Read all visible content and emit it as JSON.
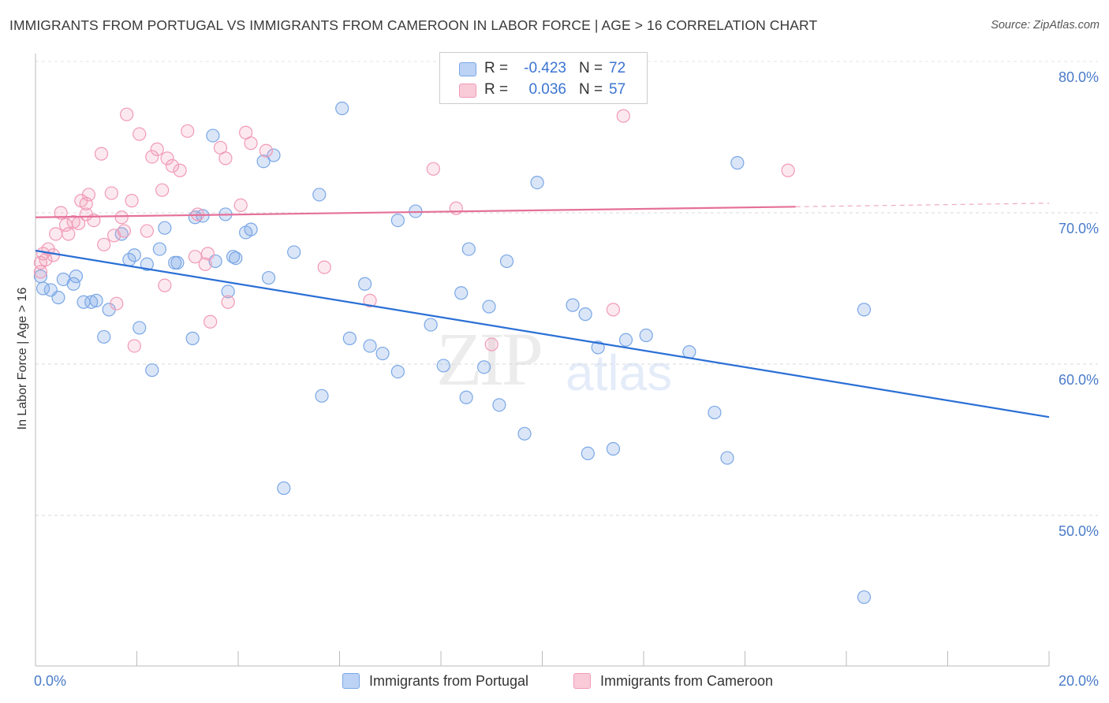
{
  "title": "IMMIGRANTS FROM PORTUGAL VS IMMIGRANTS FROM CAMEROON IN LABOR FORCE | AGE > 16 CORRELATION CHART",
  "source": "Source: ZipAtlas.com",
  "watermark": {
    "a": "ZIP",
    "b": "atlas"
  },
  "stats": {
    "rows": [
      {
        "r_label": "R =",
        "r_value": "-0.423",
        "n_label": "N =",
        "n_value": "72"
      },
      {
        "r_label": "R =",
        "r_value": "0.036",
        "n_label": "N =",
        "n_value": "57"
      }
    ]
  },
  "legend": [
    {
      "label": "Immigrants from Portugal"
    },
    {
      "label": "Immigrants from Cameroon"
    }
  ],
  "chart_data": {
    "type": "scatter",
    "title": "IMMIGRANTS FROM PORTUGAL VS IMMIGRANTS FROM CAMEROON IN LABOR FORCE | AGE > 16 CORRELATION CHART",
    "xlabel": "",
    "ylabel": "In Labor Force | Age > 16",
    "xlim": [
      0,
      20
    ],
    "ylim": [
      40,
      82
    ],
    "x_tick_labels": [
      "0.0%",
      "20.0%"
    ],
    "y_ticks": [
      50,
      60,
      70,
      80
    ],
    "y_tick_labels": [
      "50.0%",
      "60.0%",
      "70.0%",
      "80.0%"
    ],
    "grid": "horizontal dashed",
    "legend_position": "bottom-center",
    "colors": {
      "portugal": "#7aa7e6",
      "cameroon": "#f19ab6",
      "portugal_line": "#2a6fd6",
      "cameroon_line": "#e5709a"
    },
    "series": [
      {
        "name": "Immigrants from Portugal",
        "color": "#7aa7e6",
        "trend": {
          "x": [
            0,
            20
          ],
          "y": [
            67.5,
            56.5
          ]
        },
        "points": [
          [
            0.15,
            65.0
          ],
          [
            0.3,
            64.9
          ],
          [
            0.45,
            64.4
          ],
          [
            0.55,
            65.6
          ],
          [
            0.75,
            65.3
          ],
          [
            0.8,
            65.8
          ],
          [
            0.95,
            64.1
          ],
          [
            1.1,
            64.1
          ],
          [
            1.2,
            64.2
          ],
          [
            1.35,
            61.8
          ],
          [
            1.45,
            63.6
          ],
          [
            1.7,
            68.6
          ],
          [
            1.85,
            66.9
          ],
          [
            1.95,
            67.2
          ],
          [
            2.05,
            62.4
          ],
          [
            2.2,
            66.6
          ],
          [
            2.3,
            59.6
          ],
          [
            2.45,
            67.6
          ],
          [
            2.55,
            69.0
          ],
          [
            2.75,
            66.7
          ],
          [
            2.8,
            66.7
          ],
          [
            3.1,
            61.7
          ],
          [
            3.15,
            69.7
          ],
          [
            3.3,
            69.8
          ],
          [
            3.55,
            66.8
          ],
          [
            3.5,
            75.1
          ],
          [
            3.75,
            69.9
          ],
          [
            3.8,
            64.8
          ],
          [
            3.9,
            67.1
          ],
          [
            3.95,
            67.0
          ],
          [
            4.15,
            68.7
          ],
          [
            4.25,
            68.9
          ],
          [
            4.5,
            73.4
          ],
          [
            4.7,
            73.8
          ],
          [
            4.6,
            65.7
          ],
          [
            4.9,
            51.8
          ],
          [
            5.1,
            67.4
          ],
          [
            5.6,
            71.2
          ],
          [
            5.65,
            57.9
          ],
          [
            6.05,
            76.9
          ],
          [
            6.2,
            61.7
          ],
          [
            6.5,
            65.3
          ],
          [
            6.6,
            61.2
          ],
          [
            6.85,
            60.7
          ],
          [
            7.15,
            69.5
          ],
          [
            7.15,
            59.5
          ],
          [
            7.5,
            70.1
          ],
          [
            7.8,
            62.6
          ],
          [
            8.05,
            59.9
          ],
          [
            8.4,
            64.7
          ],
          [
            8.5,
            57.8
          ],
          [
            8.55,
            67.6
          ],
          [
            8.85,
            59.8
          ],
          [
            8.95,
            63.8
          ],
          [
            9.15,
            57.3
          ],
          [
            9.3,
            66.8
          ],
          [
            9.65,
            55.4
          ],
          [
            9.9,
            72.0
          ],
          [
            10.6,
            63.9
          ],
          [
            10.85,
            63.3
          ],
          [
            10.9,
            54.1
          ],
          [
            11.1,
            61.1
          ],
          [
            11.4,
            54.4
          ],
          [
            11.65,
            61.6
          ],
          [
            12.05,
            61.9
          ],
          [
            12.9,
            60.8
          ],
          [
            13.4,
            56.8
          ],
          [
            13.65,
            53.8
          ],
          [
            13.85,
            73.3
          ],
          [
            16.35,
            63.6
          ],
          [
            16.35,
            44.6
          ],
          [
            0.1,
            65.8
          ]
        ]
      },
      {
        "name": "Immigrants from Cameroon",
        "color": "#f19ab6",
        "trend": {
          "x": [
            0,
            15
          ],
          "y": [
            69.7,
            70.4
          ]
        },
        "points": [
          [
            0.1,
            66.1
          ],
          [
            0.15,
            67.3
          ],
          [
            0.25,
            67.6
          ],
          [
            0.35,
            67.2
          ],
          [
            0.4,
            68.6
          ],
          [
            0.5,
            70.0
          ],
          [
            0.6,
            69.2
          ],
          [
            0.65,
            68.6
          ],
          [
            0.75,
            69.4
          ],
          [
            0.85,
            69.3
          ],
          [
            0.9,
            70.8
          ],
          [
            1.0,
            70.6
          ],
          [
            1.05,
            71.2
          ],
          [
            1.15,
            69.5
          ],
          [
            1.3,
            73.9
          ],
          [
            1.35,
            67.9
          ],
          [
            1.5,
            71.3
          ],
          [
            1.55,
            68.5
          ],
          [
            1.6,
            64.0
          ],
          [
            1.7,
            69.7
          ],
          [
            1.75,
            68.8
          ],
          [
            1.8,
            76.5
          ],
          [
            1.9,
            70.8
          ],
          [
            1.95,
            61.2
          ],
          [
            2.05,
            75.2
          ],
          [
            2.2,
            68.8
          ],
          [
            2.3,
            73.7
          ],
          [
            2.4,
            74.2
          ],
          [
            2.5,
            71.5
          ],
          [
            2.6,
            73.6
          ],
          [
            2.55,
            65.2
          ],
          [
            2.7,
            73.1
          ],
          [
            2.85,
            72.8
          ],
          [
            3.0,
            75.4
          ],
          [
            3.2,
            69.9
          ],
          [
            3.15,
            67.1
          ],
          [
            3.35,
            66.6
          ],
          [
            3.4,
            67.3
          ],
          [
            3.45,
            62.8
          ],
          [
            3.65,
            74.3
          ],
          [
            3.75,
            73.6
          ],
          [
            3.8,
            64.1
          ],
          [
            4.05,
            70.5
          ],
          [
            4.15,
            75.3
          ],
          [
            4.25,
            74.6
          ],
          [
            4.55,
            74.1
          ],
          [
            5.7,
            66.4
          ],
          [
            6.6,
            64.2
          ],
          [
            7.85,
            72.9
          ],
          [
            8.3,
            70.3
          ],
          [
            9.0,
            61.3
          ],
          [
            11.4,
            63.6
          ],
          [
            11.6,
            76.4
          ],
          [
            14.85,
            72.8
          ],
          [
            0.1,
            66.7
          ],
          [
            0.2,
            66.9
          ],
          [
            1.0,
            69.9
          ]
        ]
      }
    ]
  }
}
